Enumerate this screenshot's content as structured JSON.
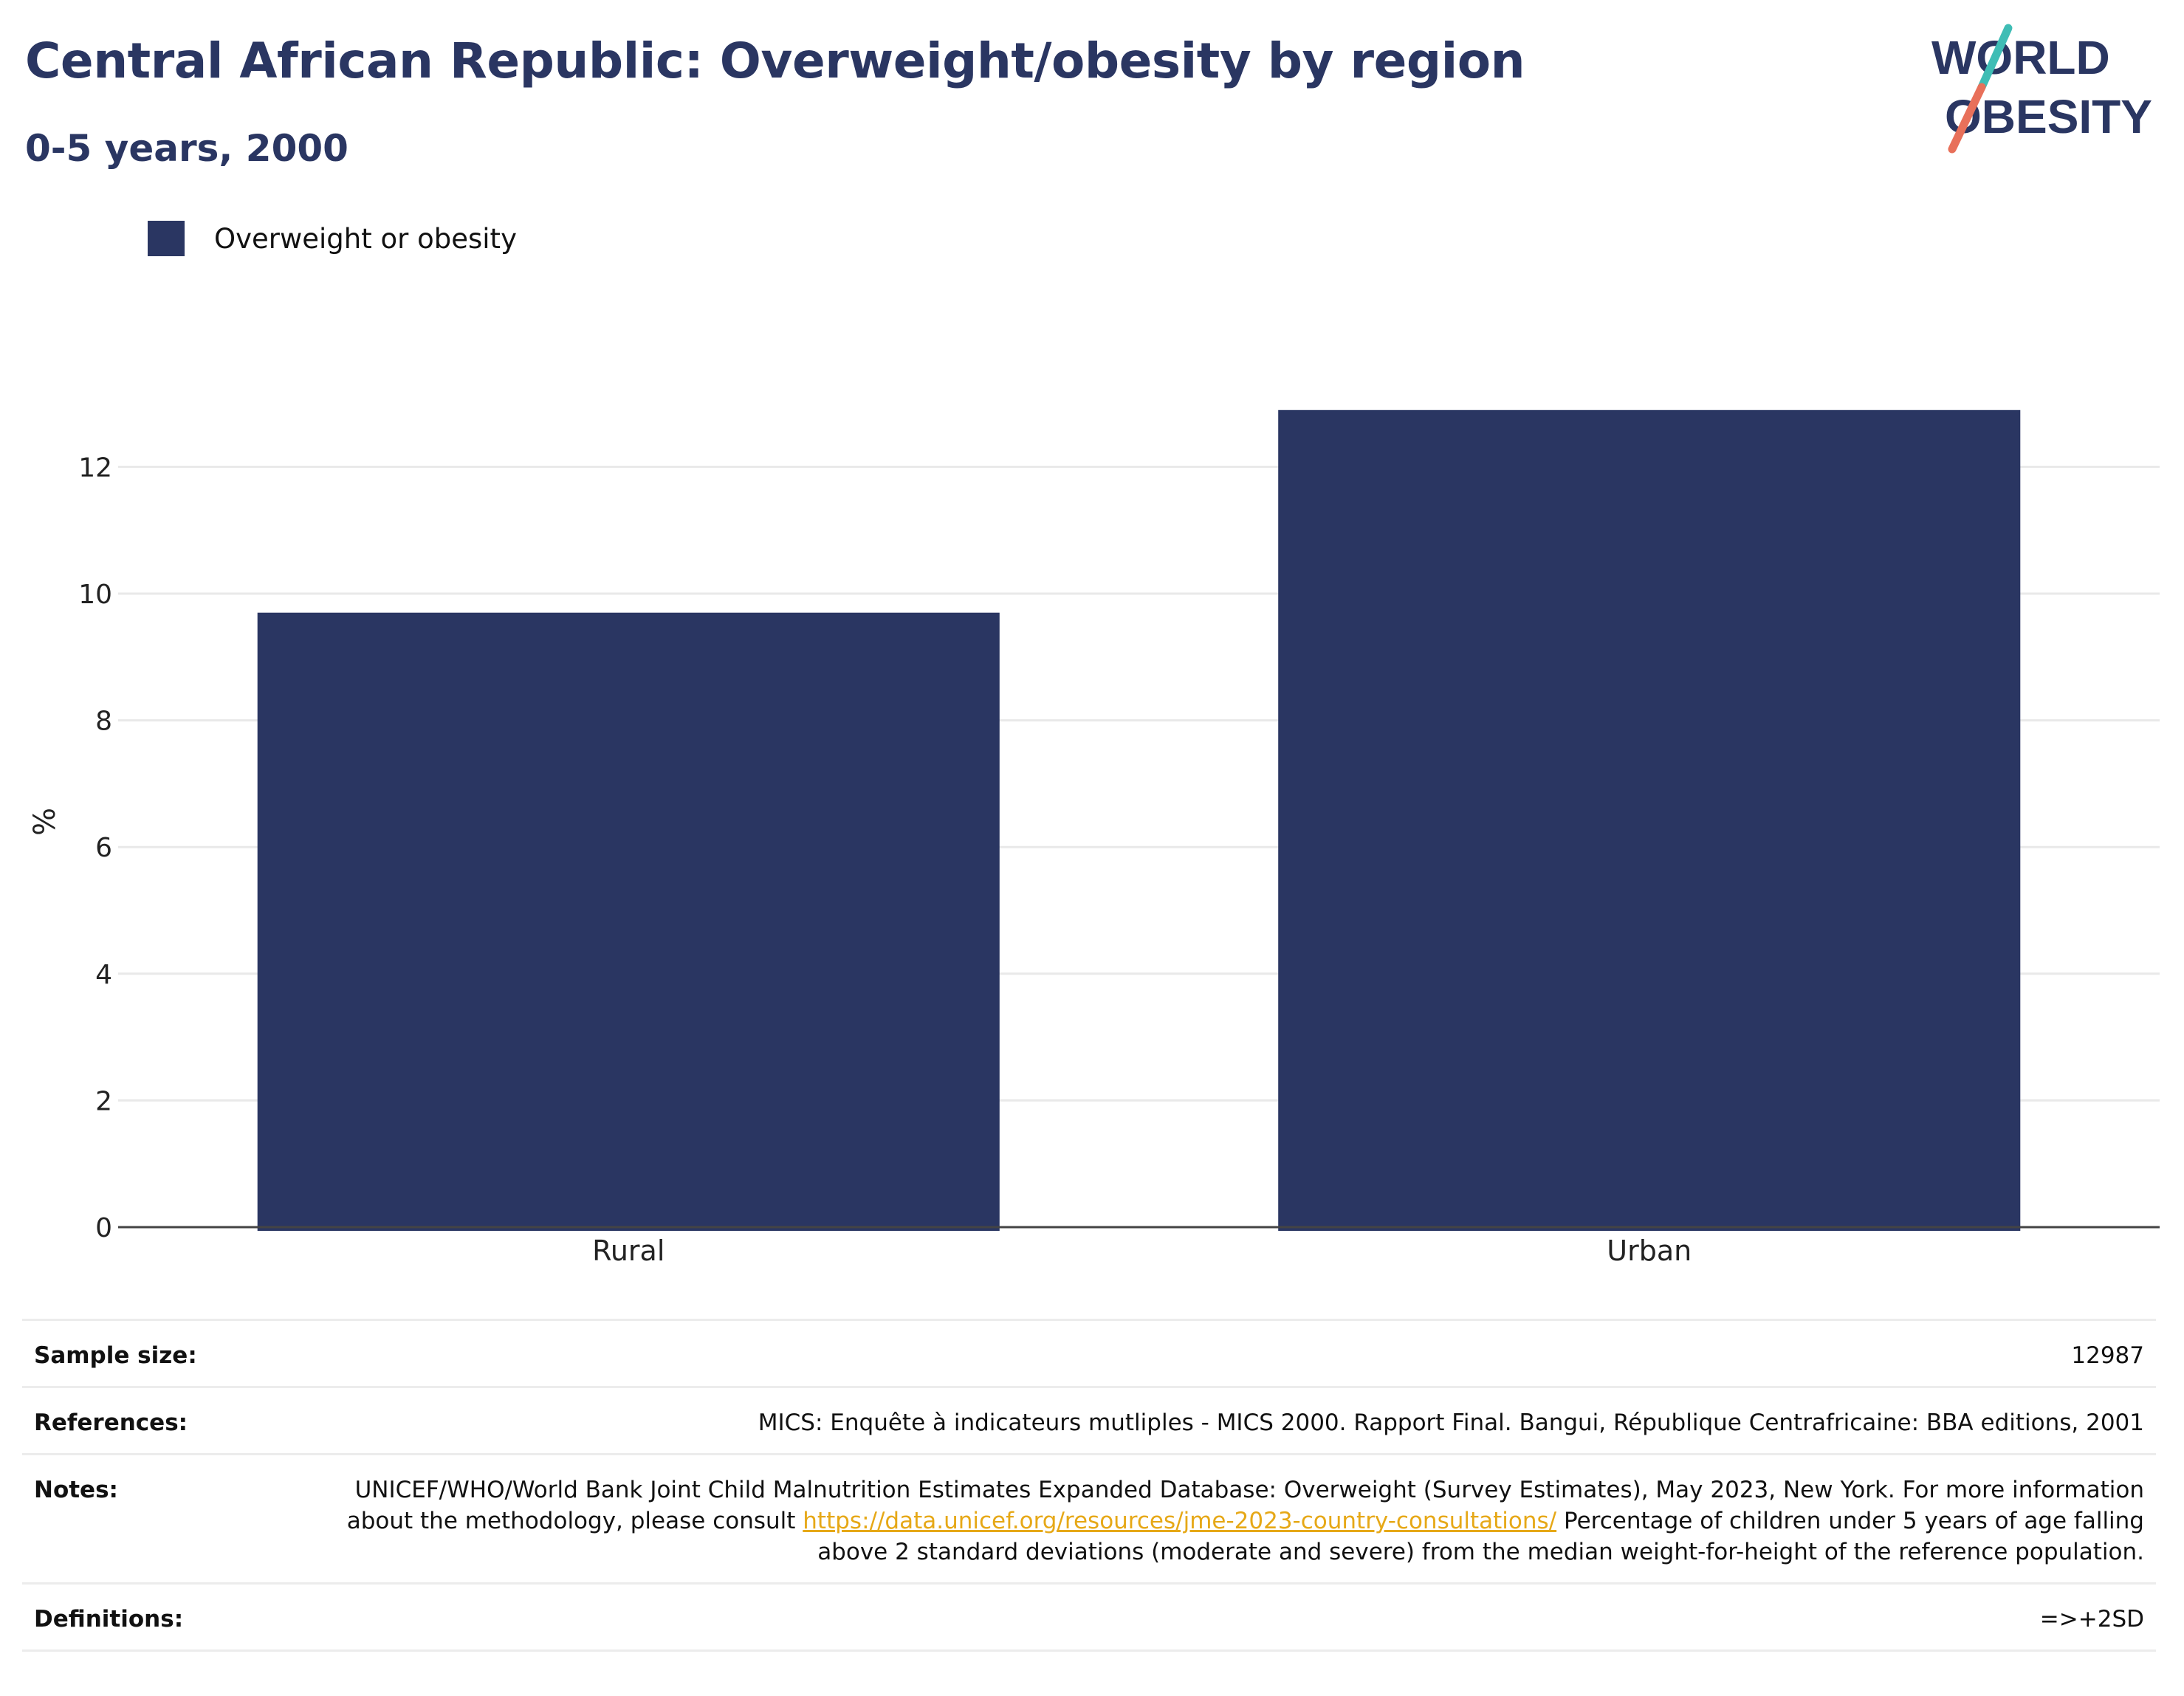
{
  "title": "Central African Republic: Overweight/obesity by region",
  "subtitle": "0-5 years, 2000",
  "logo": {
    "line1": "WORLD",
    "line2": "OBESITY",
    "colors": {
      "text": "#2a3662",
      "slash_top": "#3fbdb5",
      "slash_bottom": "#e8705a"
    }
  },
  "legend": {
    "label": "Overweight or obesity",
    "color": "#2a3662"
  },
  "chart_data": {
    "type": "bar",
    "categories": [
      "Rural",
      "Urban"
    ],
    "series": [
      {
        "name": "Overweight or obesity",
        "values": [
          9.7,
          12.9
        ],
        "color": "#2a3662"
      }
    ],
    "ylabel": "%",
    "xlabel": "",
    "ylim": [
      0,
      14
    ],
    "yticks": [
      0,
      2,
      4,
      6,
      8,
      10,
      12
    ],
    "grid": true,
    "legend_position": "top-left"
  },
  "info": {
    "sample_size": {
      "label": "Sample size:",
      "value": "12987"
    },
    "references": {
      "label": "References:",
      "value": "MICS: Enquête à indicateurs mutliples - MICS 2000. Rapport Final. Bangui, République Centrafricaine: BBA editions, 2001"
    },
    "notes": {
      "label": "Notes:",
      "text1": "UNICEF/WHO/World Bank Joint Child Malnutrition Estimates Expanded Database: Overweight (Survey Estimates), May 2023, New York. For more information about the methodology, please consult",
      "link": "https://data.unicef.org/resources/jme-2023-country-consultations/",
      "text2": "Percentage of children under 5 years of age falling above 2 standard deviations (moderate and severe) from the median weight-for-height of the reference population."
    },
    "definitions": {
      "label": "Definitions:",
      "value": "=>+2SD"
    }
  }
}
